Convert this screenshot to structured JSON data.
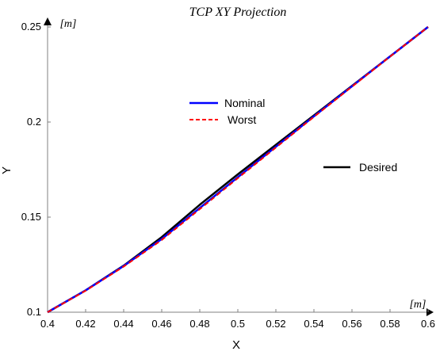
{
  "chart_data": {
    "type": "line",
    "title": "TCP XY Projection",
    "xlabel": "X",
    "ylabel": "Y",
    "x_unit": "[m]",
    "y_unit": "[m]",
    "xlim": [
      0.4,
      0.6
    ],
    "ylim": [
      0.1,
      0.25
    ],
    "xticks": [
      "0.4",
      "0.42",
      "0.44",
      "0.46",
      "0.48",
      "0.5",
      "0.52",
      "0.54",
      "0.56",
      "0.58",
      "0.6"
    ],
    "yticks": [
      "0.1",
      "0.15",
      "0.2",
      "0.25"
    ],
    "grid": false,
    "series": [
      {
        "name": "Desired",
        "color": "#000000",
        "dash": "solid",
        "x": [
          0.4,
          0.42,
          0.44,
          0.46,
          0.48,
          0.5,
          0.52,
          0.54,
          0.56,
          0.58,
          0.6
        ],
        "y": [
          0.1,
          0.1115,
          0.1245,
          0.1395,
          0.1565,
          0.1725,
          0.188,
          0.2035,
          0.219,
          0.2345,
          0.25
        ]
      },
      {
        "name": "Nominal",
        "color": "#0000ff",
        "dash": "solid",
        "x": [
          0.4,
          0.42,
          0.44,
          0.46,
          0.48,
          0.5,
          0.52,
          0.54,
          0.56,
          0.58,
          0.6
        ],
        "y": [
          0.1,
          0.1115,
          0.1243,
          0.1385,
          0.1548,
          0.171,
          0.187,
          0.203,
          0.2188,
          0.2345,
          0.25
        ]
      },
      {
        "name": "Worst",
        "color": "#ff0000",
        "dash": "dashed",
        "x": [
          0.4,
          0.42,
          0.44,
          0.46,
          0.48,
          0.5,
          0.52,
          0.54,
          0.56,
          0.58,
          0.6
        ],
        "y": [
          0.1,
          0.1113,
          0.124,
          0.138,
          0.1542,
          0.1705,
          0.1866,
          0.2027,
          0.2186,
          0.2344,
          0.25
        ]
      }
    ],
    "legend": [
      {
        "label": "Nominal",
        "color": "#0000ff",
        "dash": "solid"
      },
      {
        "label": "Worst",
        "color": "#ff0000",
        "dash": "dashed"
      },
      {
        "label": "Desired",
        "color": "#000000",
        "dash": "solid"
      }
    ]
  }
}
